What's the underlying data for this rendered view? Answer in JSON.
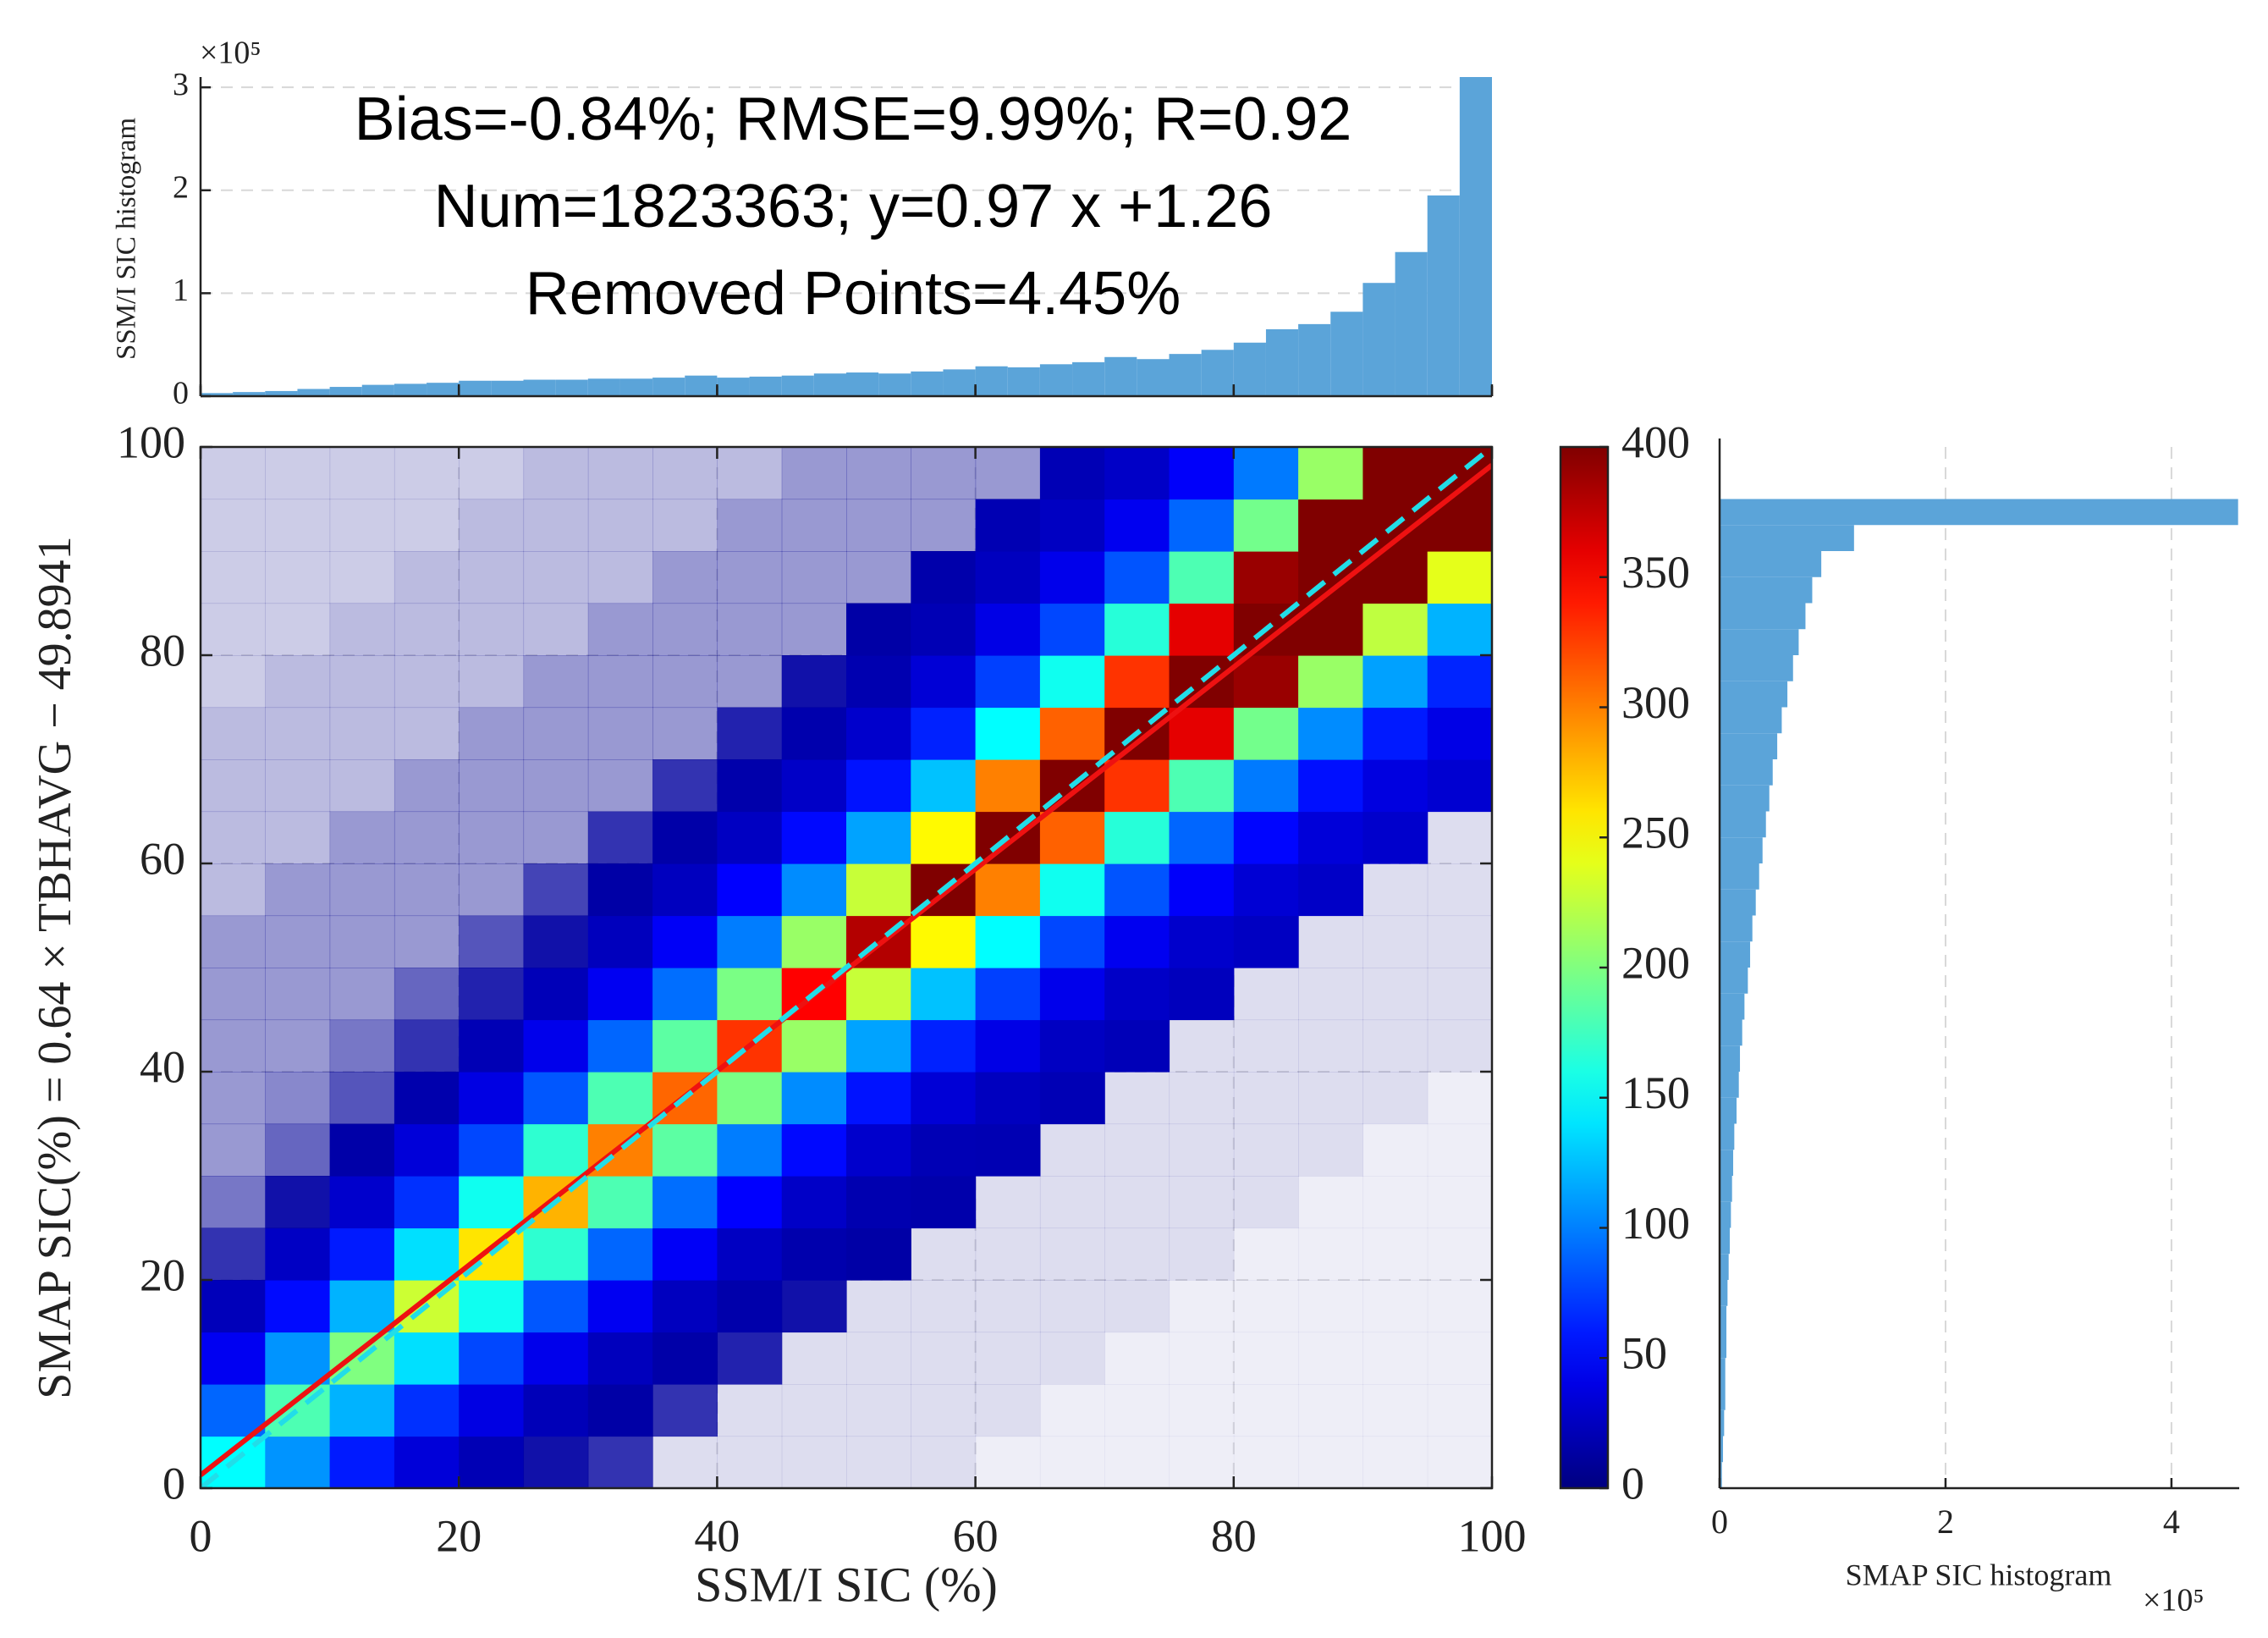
{
  "chart_data": [
    {
      "type": "histogram",
      "orientation": "vertical",
      "ylabel": "SSM/I SIC histogram",
      "y_multiplier": "×10⁵",
      "bins": [
        0,
        2.5,
        5,
        7.5,
        10,
        12.5,
        15,
        17.5,
        20,
        22.5,
        25,
        27.5,
        30,
        32.5,
        35,
        37.5,
        40,
        42.5,
        45,
        47.5,
        50,
        52.5,
        55,
        57.5,
        60,
        62.5,
        65,
        67.5,
        70,
        72.5,
        75,
        77.5,
        80,
        82.5,
        85,
        87.5,
        90,
        92.5,
        95,
        97.5,
        100
      ],
      "values": [
        0.03,
        0.04,
        0.05,
        0.07,
        0.09,
        0.11,
        0.12,
        0.13,
        0.15,
        0.15,
        0.16,
        0.16,
        0.17,
        0.17,
        0.18,
        0.2,
        0.18,
        0.19,
        0.2,
        0.22,
        0.23,
        0.22,
        0.24,
        0.26,
        0.29,
        0.28,
        0.31,
        0.33,
        0.38,
        0.36,
        0.41,
        0.45,
        0.52,
        0.65,
        0.7,
        0.82,
        1.1,
        1.4,
        1.95,
        3.1
      ],
      "color": "#5ba4d9",
      "xlim": [
        0,
        100
      ],
      "ylim": [
        0,
        3.1
      ],
      "yticks": [
        0,
        1,
        2,
        3
      ],
      "grid": true
    },
    {
      "type": "density_scatter",
      "xlabel": "SSM/I SIC (%)",
      "ylabel": "SMAP SIC(%) = 0.64 × TBHAVG − 49.8941",
      "annotations": [
        "Bias=-0.84%; RMSE=9.99%; R=0.92",
        "Num=1823363; y=0.97 x +1.26",
        "Removed Points=4.45%"
      ],
      "xlim": [
        0,
        100
      ],
      "ylim": [
        0,
        100
      ],
      "xticks": [
        0,
        20,
        40,
        60,
        80,
        100
      ],
      "yticks": [
        0,
        20,
        40,
        60,
        80,
        100
      ],
      "colormap": "jet",
      "clim": [
        0,
        400
      ],
      "grid": true,
      "x_bins": [
        0,
        5,
        10,
        15,
        20,
        25,
        30,
        35,
        40,
        45,
        50,
        55,
        60,
        65,
        70,
        75,
        80,
        85,
        90,
        95,
        100
      ],
      "y_bins": [
        0,
        5,
        10,
        15,
        20,
        25,
        30,
        35,
        40,
        45,
        50,
        55,
        60,
        65,
        70,
        75,
        80,
        85,
        90,
        95,
        100
      ],
      "values": [
        [
          150,
          108,
          60,
          35,
          21,
          14,
          12,
          2,
          2,
          2,
          2,
          2,
          1,
          1,
          1,
          1,
          1,
          1,
          1,
          1
        ],
        [
          90,
          180,
          120,
          69,
          39,
          22,
          15,
          12,
          2,
          2,
          2,
          2,
          2,
          1,
          1,
          1,
          1,
          1,
          1,
          1
        ],
        [
          45,
          108,
          200,
          138,
          78,
          42,
          24,
          16,
          13,
          2,
          2,
          2,
          2,
          2,
          1,
          1,
          1,
          1,
          1,
          1
        ],
        [
          23,
          54,
          120,
          230,
          156,
          84,
          45,
          25,
          17,
          14,
          2,
          2,
          2,
          2,
          2,
          1,
          1,
          1,
          1,
          1
        ],
        [
          12,
          27,
          60,
          138,
          260,
          168,
          90,
          47,
          26,
          18,
          15,
          2,
          2,
          2,
          2,
          2,
          1,
          1,
          1,
          1
        ],
        [
          8,
          14,
          30,
          69,
          156,
          280,
          180,
          93,
          50,
          28,
          19,
          17,
          2,
          2,
          2,
          2,
          2,
          1,
          1,
          1
        ],
        [
          6,
          9,
          16,
          35,
          78,
          168,
          300,
          186,
          99,
          53,
          30,
          21,
          20,
          2,
          2,
          2,
          2,
          2,
          1,
          1
        ],
        [
          6,
          7,
          10,
          18,
          39,
          84,
          180,
          310,
          198,
          105,
          57,
          34,
          25,
          21,
          2,
          2,
          2,
          2,
          2,
          1
        ],
        [
          6,
          6,
          8,
          12,
          21,
          42,
          90,
          186,
          330,
          210,
          114,
          63,
          40,
          26,
          22,
          2,
          2,
          2,
          2,
          2
        ],
        [
          6,
          6,
          6,
          9,
          13,
          22,
          45,
          93,
          198,
          350,
          228,
          126,
          75,
          42,
          28,
          24,
          2,
          2,
          2,
          2
        ],
        [
          6,
          6,
          6,
          6,
          10,
          14,
          24,
          47,
          99,
          210,
          380,
          252,
          150,
          78,
          44,
          30,
          26,
          2,
          2,
          2
        ],
        [
          4,
          6,
          6,
          6,
          6,
          11,
          15,
          25,
          50,
          105,
          228,
          420,
          300,
          156,
          83,
          48,
          33,
          28,
          2,
          2
        ],
        [
          4,
          4,
          6,
          6,
          6,
          6,
          12,
          16,
          26,
          53,
          114,
          252,
          500,
          312,
          165,
          90,
          52,
          35,
          30,
          2
        ],
        [
          4,
          4,
          4,
          6,
          6,
          6,
          6,
          12,
          17,
          28,
          57,
          126,
          300,
          520,
          330,
          180,
          98,
          56,
          38,
          32
        ],
        [
          4,
          4,
          4,
          4,
          6,
          6,
          6,
          6,
          13,
          18,
          30,
          63,
          150,
          312,
          550,
          360,
          195,
          105,
          60,
          40
        ],
        [
          3,
          4,
          4,
          4,
          4,
          6,
          6,
          6,
          6,
          14,
          19,
          34,
          75,
          156,
          330,
          600,
          390,
          210,
          113,
          64
        ],
        [
          3,
          3,
          4,
          4,
          4,
          4,
          6,
          6,
          6,
          6,
          15,
          21,
          40,
          78,
          165,
          360,
          650,
          420,
          225,
          120
        ],
        [
          3,
          3,
          3,
          4,
          4,
          4,
          4,
          6,
          6,
          6,
          6,
          17,
          25,
          42,
          83,
          180,
          390,
          700,
          450,
          240
        ],
        [
          3,
          3,
          3,
          3,
          4,
          4,
          4,
          4,
          6,
          6,
          6,
          6,
          20,
          26,
          44,
          90,
          195,
          420,
          750,
          480
        ],
        [
          3,
          3,
          3,
          3,
          3,
          4,
          4,
          4,
          4,
          6,
          6,
          6,
          6,
          21,
          28,
          48,
          98,
          210,
          450,
          800
        ]
      ],
      "lines": [
        {
          "slope": 0.97,
          "intercept": 1.26,
          "color": "#ee1111",
          "dashed": false
        },
        {
          "slope": 1,
          "intercept": 0,
          "color": "#22dde8",
          "dashed": true
        }
      ]
    },
    {
      "type": "colorbar",
      "colormap": "jet",
      "ylim": [
        0,
        400
      ],
      "yticks": [
        0,
        50,
        100,
        150,
        200,
        250,
        300,
        350,
        400
      ]
    },
    {
      "type": "histogram",
      "orientation": "horizontal",
      "xlabel": "SMAP SIC histogram",
      "x_multiplier": "×10⁵",
      "bins": [
        0,
        2.5,
        5,
        7.5,
        10,
        12.5,
        15,
        17.5,
        20,
        22.5,
        25,
        27.5,
        30,
        32.5,
        35,
        37.5,
        40,
        42.5,
        45,
        47.5,
        50,
        52.5,
        55,
        57.5,
        60,
        62.5,
        65,
        67.5,
        70,
        72.5,
        75,
        77.5,
        80,
        82.5,
        85,
        87.5,
        90,
        92.5,
        95,
        97.5,
        100
      ],
      "values": [
        0.02,
        0.03,
        0.04,
        0.05,
        0.05,
        0.06,
        0.06,
        0.07,
        0.08,
        0.09,
        0.1,
        0.11,
        0.12,
        0.13,
        0.15,
        0.17,
        0.18,
        0.2,
        0.22,
        0.25,
        0.27,
        0.29,
        0.32,
        0.35,
        0.38,
        0.41,
        0.44,
        0.47,
        0.51,
        0.55,
        0.6,
        0.65,
        0.7,
        0.76,
        0.82,
        0.9,
        1.19,
        4.59,
        0,
        0
      ],
      "color": "#5ba4d9",
      "xlim": [
        0,
        4.6
      ],
      "xticks": [
        0,
        2,
        4
      ],
      "ylim": [
        0,
        100
      ],
      "grid": true
    }
  ]
}
